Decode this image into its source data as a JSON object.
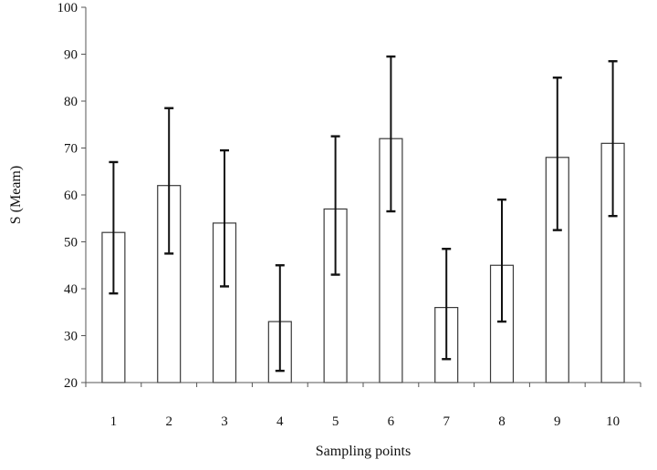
{
  "chart_data": {
    "type": "bar",
    "title": "",
    "xlabel": "Sampling points",
    "ylabel": "S (Meam)",
    "categories": [
      "1",
      "2",
      "3",
      "4",
      "5",
      "6",
      "7",
      "8",
      "9",
      "10"
    ],
    "series": [
      {
        "values": [
          52,
          62,
          54,
          33,
          57,
          72,
          36,
          45,
          68,
          71
        ],
        "error_low": [
          39,
          47.5,
          40.5,
          22.5,
          43,
          56.5,
          25,
          33,
          52.5,
          55.5
        ],
        "error_high": [
          67,
          78.5,
          69.5,
          45,
          72.5,
          89.5,
          48.5,
          59,
          85,
          88.5
        ]
      }
    ],
    "ylim": [
      20,
      100
    ],
    "yticks": [
      "20",
      "30",
      "40",
      "50",
      "60",
      "70",
      "80",
      "90",
      "100"
    ],
    "grid": false,
    "legend": "none",
    "colors": {
      "bar_fill": "#ffffff",
      "bar_stroke": "#3a3a3a",
      "error_bar": "#111111",
      "axis": "#555555"
    }
  }
}
